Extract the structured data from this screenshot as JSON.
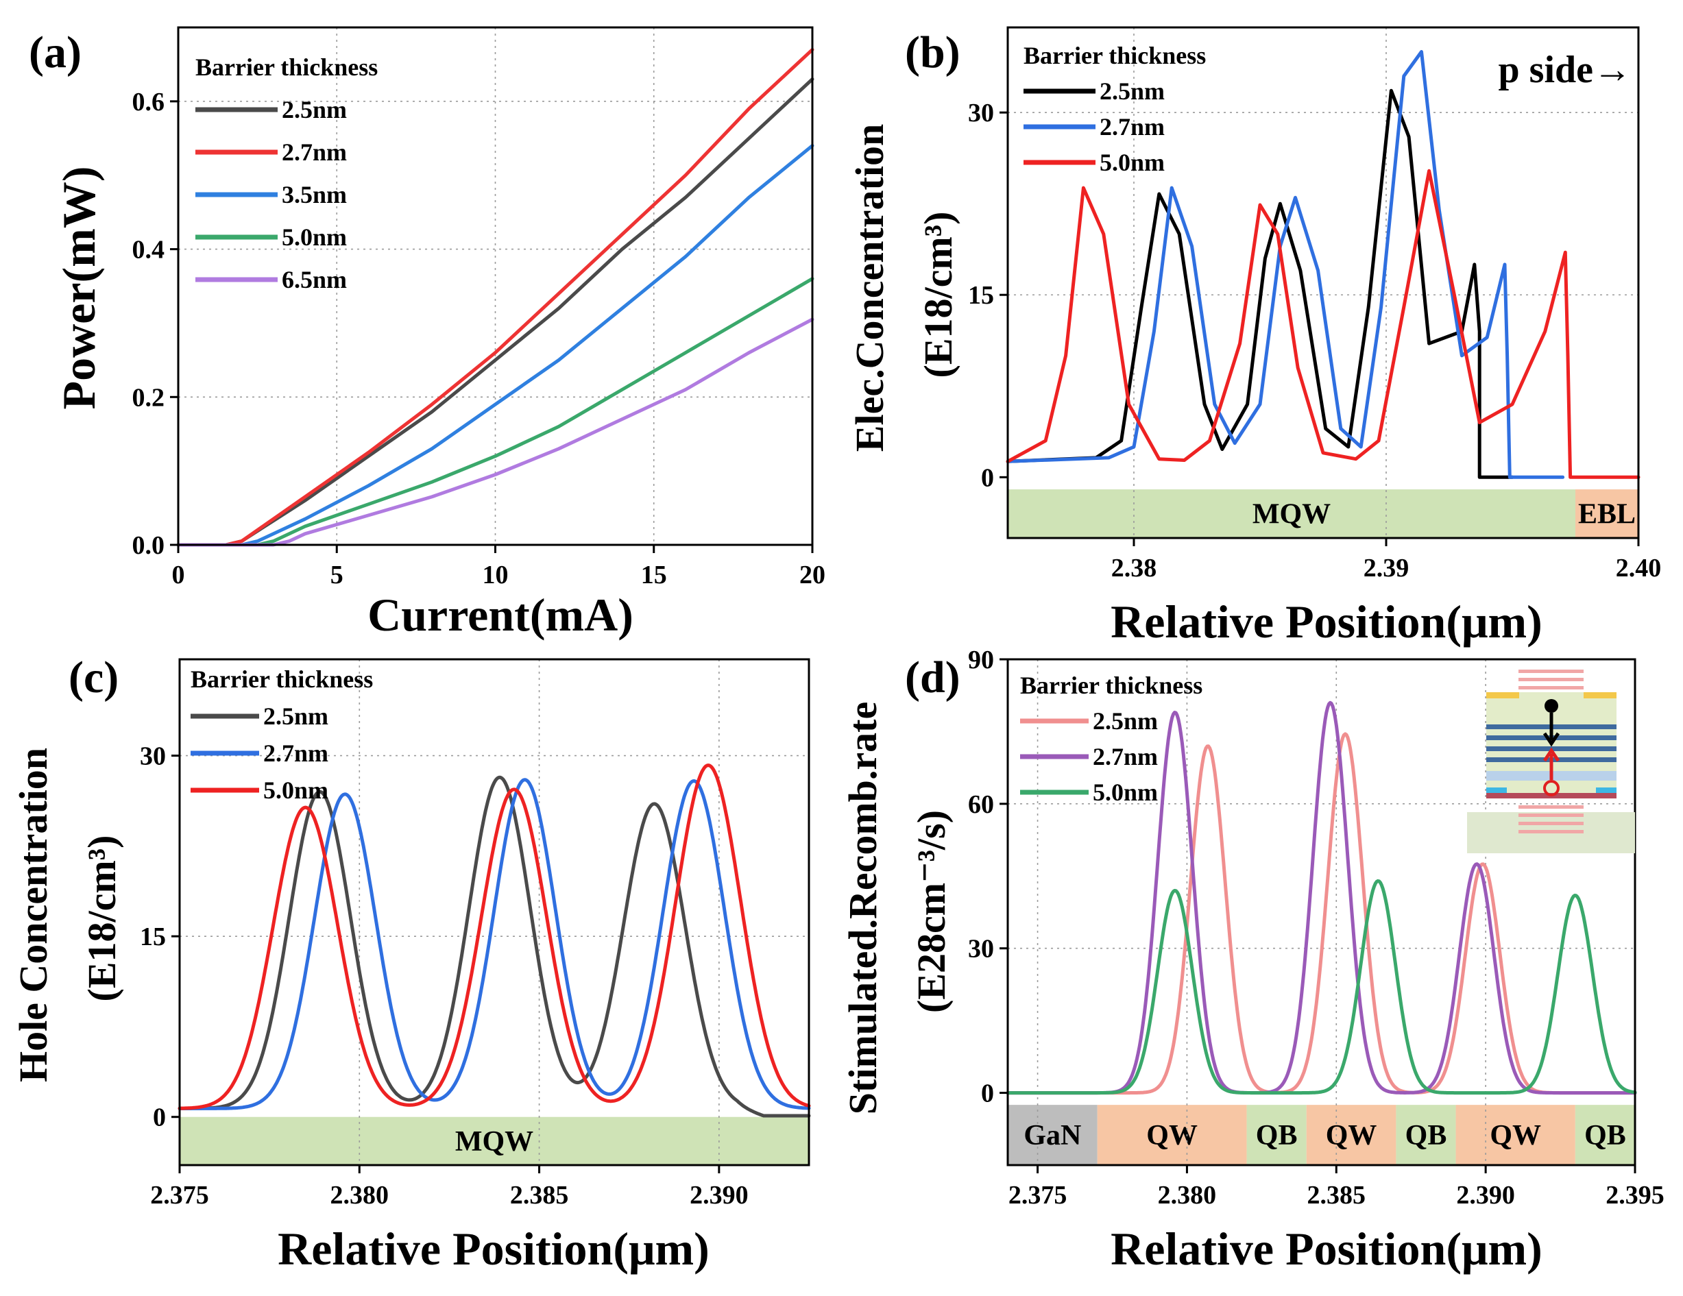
{
  "colors": {
    "black": "#2b2b2b",
    "pure_black": "#000000",
    "red": "#ee3333",
    "blue": "#2f6fe0",
    "green": "#3aa86b",
    "purple": "#b07be0",
    "pink": "#f08f8f",
    "violet": "#9a5ab8",
    "mqw_green": "#cfe3b6",
    "ebl_orange": "#f7c6a4",
    "gan_gray": "#bdbdbd",
    "qw_orange": "#f7c6a4",
    "qb_green": "#cfe3b6"
  },
  "chart_data": [
    {
      "panel": "(a)",
      "type": "line",
      "xlabel": "Current(mA)",
      "ylabel": "Power(mW)",
      "xlim": [
        0,
        20
      ],
      "ylim": [
        0,
        0.7
      ],
      "xticks": [
        0,
        5,
        10,
        15,
        20
      ],
      "yticks": [
        0.0,
        0.2,
        0.4,
        0.6
      ],
      "ytick_labels": [
        "0.0",
        "0.2",
        "0.4",
        "0.6"
      ],
      "legend_title": "Barrier thickness",
      "series": [
        {
          "name": "2.5nm",
          "color": "#4a4a4a",
          "x": [
            0,
            1.5,
            2,
            4,
            6,
            8,
            10,
            12,
            14,
            16,
            18,
            20
          ],
          "y": [
            0,
            0,
            0.005,
            0.06,
            0.12,
            0.18,
            0.25,
            0.32,
            0.4,
            0.47,
            0.55,
            0.63
          ]
        },
        {
          "name": "2.7nm",
          "color": "#ee3333",
          "x": [
            0,
            1.5,
            2,
            4,
            6,
            8,
            10,
            12,
            14,
            16,
            18,
            20
          ],
          "y": [
            0,
            0,
            0.005,
            0.065,
            0.125,
            0.19,
            0.26,
            0.34,
            0.42,
            0.5,
            0.59,
            0.67
          ]
        },
        {
          "name": "3.5nm",
          "color": "#2f80e0",
          "x": [
            0,
            2,
            2.5,
            4,
            6,
            8,
            10,
            12,
            14,
            16,
            18,
            20
          ],
          "y": [
            0,
            0,
            0.005,
            0.035,
            0.08,
            0.13,
            0.19,
            0.25,
            0.32,
            0.39,
            0.47,
            0.54
          ]
        },
        {
          "name": "5.0nm",
          "color": "#3aa86b",
          "x": [
            0,
            2.5,
            3,
            4,
            6,
            8,
            10,
            12,
            14,
            16,
            18,
            20
          ],
          "y": [
            0,
            0,
            0.005,
            0.025,
            0.055,
            0.085,
            0.12,
            0.16,
            0.21,
            0.26,
            0.31,
            0.36
          ]
        },
        {
          "name": "6.5nm",
          "color": "#b07be0",
          "x": [
            0,
            3,
            3.5,
            4,
            6,
            8,
            10,
            12,
            14,
            16,
            18,
            20
          ],
          "y": [
            0,
            0,
            0.005,
            0.015,
            0.04,
            0.065,
            0.095,
            0.13,
            0.17,
            0.21,
            0.26,
            0.305
          ]
        }
      ]
    },
    {
      "panel": "(b)",
      "type": "line",
      "xlabel": "Relative Position(μm)",
      "ylabel_line1": "Elec.Concentration",
      "ylabel_line2": "(E18/cm³)",
      "xlim": [
        2.375,
        2.4
      ],
      "ylim": [
        -5,
        37
      ],
      "xticks": [
        2.38,
        2.39,
        2.4
      ],
      "xtick_labels": [
        "2.38",
        "2.39",
        "2.40"
      ],
      "yticks": [
        0,
        15,
        30
      ],
      "ytick_labels": [
        "0",
        "15",
        "30"
      ],
      "legend_title": "Barrier thickness",
      "annotation": "p side→",
      "bands": [
        {
          "label": "MQW",
          "x0": 2.375,
          "x1": 2.3975,
          "color": "#cfe3b6"
        },
        {
          "label": "EBL",
          "x0": 2.3975,
          "x1": 2.4,
          "color": "#f7c6a4"
        }
      ],
      "series": [
        {
          "name": "2.5nm",
          "color": "#000000",
          "x": [
            2.375,
            2.3785,
            2.3795,
            2.3803,
            2.381,
            2.3818,
            2.3828,
            2.3835,
            2.3845,
            2.3852,
            2.3858,
            2.3866,
            2.3876,
            2.3885,
            2.3893,
            2.3902,
            2.3909,
            2.3917,
            2.393,
            2.3935,
            2.3937,
            2.3937,
            2.395
          ],
          "y": [
            1.3,
            1.6,
            3,
            14,
            23.3,
            20,
            6,
            2.3,
            6,
            18,
            22.5,
            17,
            4,
            2.5,
            14,
            31.8,
            28,
            11,
            12,
            17.5,
            12,
            0,
            0
          ]
        },
        {
          "name": "2.7nm",
          "color": "#2f6fe0",
          "x": [
            2.375,
            2.379,
            2.38,
            2.3808,
            2.3815,
            2.3823,
            2.3832,
            2.384,
            2.385,
            2.3858,
            2.3864,
            2.3873,
            2.3882,
            2.389,
            2.3898,
            2.3907,
            2.3914,
            2.3921,
            2.393,
            2.394,
            2.3947,
            2.3948,
            2.3949,
            2.397
          ],
          "y": [
            1.3,
            1.6,
            2.5,
            12,
            23.8,
            19,
            6,
            2.8,
            6,
            19,
            23,
            17,
            4,
            2.5,
            14,
            33,
            35,
            22,
            10,
            11.5,
            17.5,
            10,
            0,
            0
          ]
        },
        {
          "name": "5.0nm",
          "color": "#ee2222",
          "x": [
            2.375,
            2.3765,
            2.3773,
            2.378,
            2.3788,
            2.3798,
            2.381,
            2.382,
            2.383,
            2.3842,
            2.385,
            2.3857,
            2.3865,
            2.3875,
            2.3888,
            2.3897,
            2.3907,
            2.3917,
            2.3927,
            2.3937,
            2.395,
            2.3963,
            2.3971,
            2.3972,
            2.3973,
            2.4
          ],
          "y": [
            1.3,
            3,
            10,
            23.8,
            20,
            6,
            1.5,
            1.4,
            3,
            11,
            22.4,
            20,
            9,
            2,
            1.5,
            3,
            14,
            25.2,
            15,
            4.5,
            6,
            12,
            18.5,
            10,
            0,
            0
          ]
        }
      ]
    },
    {
      "panel": "(c)",
      "type": "line",
      "xlabel": "Relative Position(μm)",
      "ylabel_line1": "Hole Concentration",
      "ylabel_line2": "(E18/cm³)",
      "xlim": [
        2.375,
        2.3925
      ],
      "ylim": [
        -4,
        38
      ],
      "xticks": [
        2.375,
        2.38,
        2.385,
        2.39
      ],
      "xtick_labels": [
        "2.375",
        "2.380",
        "2.385",
        "2.390"
      ],
      "yticks": [
        0,
        15,
        30
      ],
      "ytick_labels": [
        "0",
        "15",
        "30"
      ],
      "legend_title": "Barrier thickness",
      "bands": [
        {
          "label": "MQW",
          "x0": 2.375,
          "x1": 2.3925,
          "color": "#cfe3b6"
        }
      ],
      "series": [
        {
          "name": "2.5nm",
          "color": "#4a4a4a",
          "peaks": [
            [
              2.3789,
              26.3
            ],
            [
              2.3839,
              27.5
            ],
            [
              2.3882,
              25.3
            ]
          ],
          "sigma": 0.00085,
          "base": 0.7,
          "tail_after": 2.3905
        },
        {
          "name": "2.7nm",
          "color": "#2f6fe0",
          "peaks": [
            [
              2.3796,
              26.1
            ],
            [
              2.3846,
              27.3
            ],
            [
              2.3893,
              27.2
            ]
          ],
          "sigma": 0.00085,
          "base": 0.7
        },
        {
          "name": "5.0nm",
          "color": "#ee2222",
          "peaks": [
            [
              2.3785,
              25.0
            ],
            [
              2.3843,
              26.5
            ],
            [
              2.3897,
              28.5
            ]
          ],
          "sigma": 0.0009,
          "base": 0.7
        }
      ]
    },
    {
      "panel": "(d)",
      "type": "line",
      "xlabel": "Relative Position(μm)",
      "ylabel_line1": "Stimulated.Recomb.rate",
      "ylabel_line2": "(E28cm⁻³/s)",
      "xlim": [
        2.374,
        2.395
      ],
      "ylim": [
        -15,
        90
      ],
      "xticks": [
        2.375,
        2.38,
        2.385,
        2.39,
        2.395
      ],
      "xtick_labels": [
        "2.375",
        "2.380",
        "2.385",
        "2.390",
        "2.395"
      ],
      "yticks": [
        0,
        30,
        60,
        90
      ],
      "ytick_labels": [
        "0",
        "30",
        "60",
        "90"
      ],
      "legend_title": "Barrier thickness",
      "bands": [
        {
          "label": "GaN",
          "x0": 2.374,
          "x1": 2.377,
          "color": "#bdbdbd"
        },
        {
          "label": "QW",
          "x0": 2.377,
          "x1": 2.382,
          "color": "#f7c6a4"
        },
        {
          "label": "QB",
          "x0": 2.382,
          "x1": 2.384,
          "color": "#cfe3b6"
        },
        {
          "label": "QW",
          "x0": 2.384,
          "x1": 2.387,
          "color": "#f7c6a4"
        },
        {
          "label": "QB",
          "x0": 2.387,
          "x1": 2.389,
          "color": "#cfe3b6"
        },
        {
          "label": "QW",
          "x0": 2.389,
          "x1": 2.393,
          "color": "#f7c6a4"
        },
        {
          "label": "QB",
          "x0": 2.393,
          "x1": 2.395,
          "color": "#cfe3b6"
        }
      ],
      "series": [
        {
          "name": "2.5nm",
          "color": "#f08f8f",
          "peaks": [
            [
              2.3807,
              72
            ],
            [
              2.3853,
              74.5
            ],
            [
              2.3899,
              47.5
            ]
          ],
          "sigma": 0.00058,
          "base": 0
        },
        {
          "name": "2.7nm",
          "color": "#9a5ab8",
          "peaks": [
            [
              2.3796,
              79
            ],
            [
              2.3848,
              81
            ],
            [
              2.3897,
              47.5
            ]
          ],
          "sigma": 0.00058,
          "base": 0
        },
        {
          "name": "5.0nm",
          "color": "#3aa86b",
          "peaks": [
            [
              2.3796,
              42
            ],
            [
              2.3864,
              44
            ],
            [
              2.393,
              41
            ]
          ],
          "sigma": 0.00058,
          "base": 0
        }
      ]
    }
  ]
}
